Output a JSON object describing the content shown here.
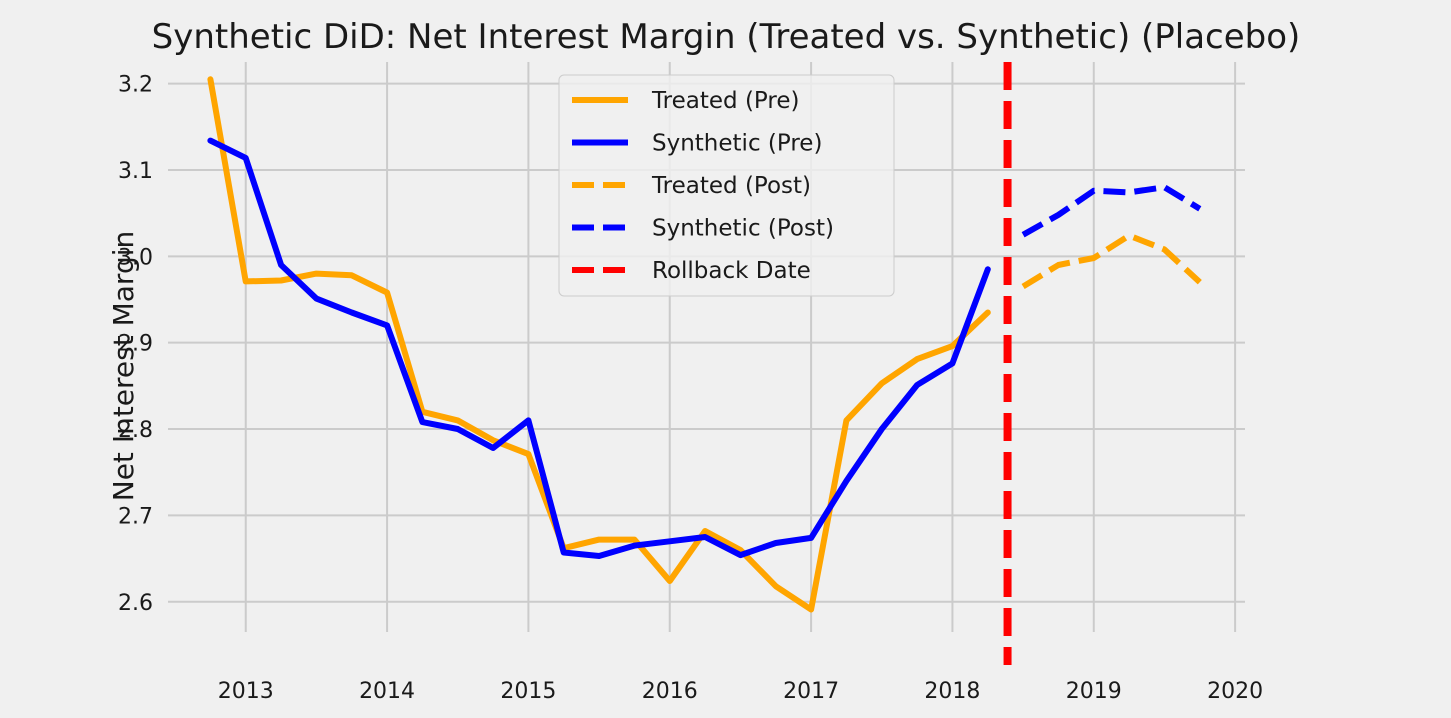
{
  "chart_data": {
    "type": "line",
    "title": "Synthetic DiD: Net Interest Margin (Treated vs. Synthetic) (Placebo)",
    "xlabel": "",
    "ylabel": "Net Interest Margin",
    "xlim": [
      2012.45,
      2020.07
    ],
    "ylim": [
      2.565,
      3.225
    ],
    "x_ticks": [
      2013,
      2014,
      2015,
      2016,
      2017,
      2018,
      2019,
      2020
    ],
    "y_ticks": [
      2.6,
      2.7,
      2.8,
      2.9,
      3.0,
      3.1,
      3.2
    ],
    "grid": true,
    "legend_position": "top-center",
    "series": [
      {
        "name": "Treated (Pre)",
        "color": "#ffa500",
        "style": "solid",
        "x": [
          2012.75,
          2013.0,
          2013.25,
          2013.5,
          2013.75,
          2014.0,
          2014.25,
          2014.5,
          2014.75,
          2015.0,
          2015.25,
          2015.5,
          2015.75,
          2016.0,
          2016.25,
          2016.5,
          2016.75,
          2017.0,
          2017.25,
          2017.5,
          2017.75,
          2018.0,
          2018.25
        ],
        "y": [
          3.205,
          2.971,
          2.972,
          2.98,
          2.978,
          2.958,
          2.82,
          2.81,
          2.787,
          2.771,
          2.662,
          2.672,
          2.672,
          2.624,
          2.682,
          2.66,
          2.618,
          2.591,
          2.81,
          2.853,
          2.881,
          2.896,
          2.935
        ]
      },
      {
        "name": "Synthetic (Pre)",
        "color": "#0000ff",
        "style": "solid",
        "x": [
          2012.75,
          2013.0,
          2013.25,
          2013.5,
          2013.75,
          2014.0,
          2014.25,
          2014.5,
          2014.75,
          2015.0,
          2015.25,
          2015.5,
          2015.75,
          2016.0,
          2016.25,
          2016.5,
          2016.75,
          2017.0,
          2017.25,
          2017.5,
          2017.75,
          2018.0,
          2018.25
        ],
        "y": [
          3.134,
          3.114,
          2.99,
          2.951,
          2.935,
          2.92,
          2.808,
          2.8,
          2.778,
          2.81,
          2.657,
          2.653,
          2.665,
          2.67,
          2.675,
          2.654,
          2.668,
          2.674,
          2.74,
          2.8,
          2.851,
          2.876,
          2.985
        ]
      },
      {
        "name": "Treated (Post)",
        "color": "#ffa500",
        "style": "dashed",
        "x": [
          2018.5,
          2018.75,
          2019.0,
          2019.25,
          2019.5,
          2019.75
        ],
        "y": [
          2.965,
          2.99,
          2.998,
          3.024,
          3.008,
          2.97
        ]
      },
      {
        "name": "Synthetic (Post)",
        "color": "#0000ff",
        "style": "dashed",
        "x": [
          2018.5,
          2018.75,
          2019.0,
          2019.25,
          2019.5,
          2019.75
        ],
        "y": [
          3.025,
          3.048,
          3.076,
          3.074,
          3.08,
          3.055
        ]
      }
    ],
    "vline": {
      "name": "Rollback Date",
      "x": 2018.39,
      "color": "#ff0000",
      "style": "dashed"
    }
  }
}
